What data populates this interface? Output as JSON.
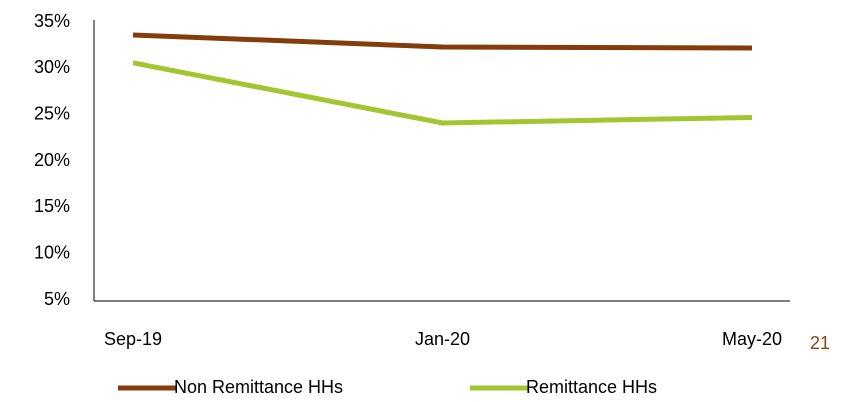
{
  "chart_data": {
    "type": "line",
    "categories": [
      "Sep-19",
      "Jan-20",
      "May-20"
    ],
    "series": [
      {
        "name": "Non Remittance HHs",
        "color": "#843c0c",
        "values": [
          33.6,
          32.3,
          32.2
        ]
      },
      {
        "name": "Remittance HHs",
        "color": "#a2c62f",
        "values": [
          30.6,
          24.1,
          24.7
        ]
      }
    ],
    "ylim": [
      5,
      35
    ],
    "yticks": [
      {
        "value": 5,
        "label": "5%"
      },
      {
        "value": 10,
        "label": "10%"
      },
      {
        "value": 15,
        "label": "15%"
      },
      {
        "value": 20,
        "label": "20%"
      },
      {
        "value": 25,
        "label": "25%"
      },
      {
        "value": 30,
        "label": "30%"
      },
      {
        "value": 35,
        "label": "35%"
      }
    ],
    "grid": false,
    "legend": "bottom"
  },
  "page_number": "21"
}
